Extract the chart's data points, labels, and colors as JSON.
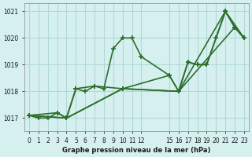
{
  "background_color": "#d6f0f0",
  "grid_color": "#b0d8d8",
  "line_color": "#2d6e2d",
  "line_width": 1.2,
  "marker": "+",
  "marker_size": 5,
  "ylim": [
    1016.5,
    1021.3
  ],
  "xlim": [
    -0.5,
    23.5
  ],
  "yticks": [
    1017,
    1018,
    1019,
    1020,
    1021
  ],
  "xtick_positions": [
    0,
    1,
    2,
    3,
    4,
    5,
    6,
    7,
    8,
    9,
    10,
    11,
    12,
    15,
    16,
    17,
    18,
    19,
    20,
    21,
    22,
    23
  ],
  "xtick_labels": [
    "0",
    "1",
    "2",
    "3",
    "4",
    "5",
    "6",
    "7",
    "8",
    "9",
    "10",
    "11",
    "12",
    "15",
    "16",
    "17",
    "18",
    "19",
    "20",
    "21",
    "22",
    "23"
  ],
  "xlabel": "Graphe pression niveau de la mer (hPa)",
  "series": [
    {
      "x": [
        0,
        1,
        2,
        3,
        4,
        5,
        6,
        7,
        8,
        9,
        10,
        11,
        12,
        15,
        16,
        17,
        18,
        19,
        20,
        21,
        22,
        23
      ],
      "y": [
        1017.1,
        1017.0,
        1017.0,
        1017.2,
        1017.0,
        1018.1,
        1018.0,
        1018.2,
        1018.1,
        1019.6,
        1020.0,
        1020.0,
        1019.3,
        1018.6,
        1018.0,
        1019.1,
        1019.0,
        1019.0,
        1020.0,
        1021.0,
        1020.4,
        1020.0
      ]
    },
    {
      "x": [
        0,
        3,
        4,
        5,
        7,
        10,
        15,
        16,
        17,
        18,
        19,
        21,
        22,
        23
      ],
      "y": [
        1017.1,
        1017.2,
        1017.0,
        1018.1,
        1018.2,
        1018.1,
        1018.6,
        1018.0,
        1019.1,
        1019.0,
        1019.0,
        1021.0,
        1020.4,
        1020.0
      ]
    },
    {
      "x": [
        0,
        4,
        10,
        16,
        21,
        23
      ],
      "y": [
        1017.1,
        1017.0,
        1018.1,
        1018.0,
        1021.0,
        1020.0
      ]
    },
    {
      "x": [
        0,
        4,
        10,
        16,
        22,
        23
      ],
      "y": [
        1017.1,
        1017.0,
        1018.1,
        1018.0,
        1020.4,
        1020.0
      ]
    }
  ]
}
